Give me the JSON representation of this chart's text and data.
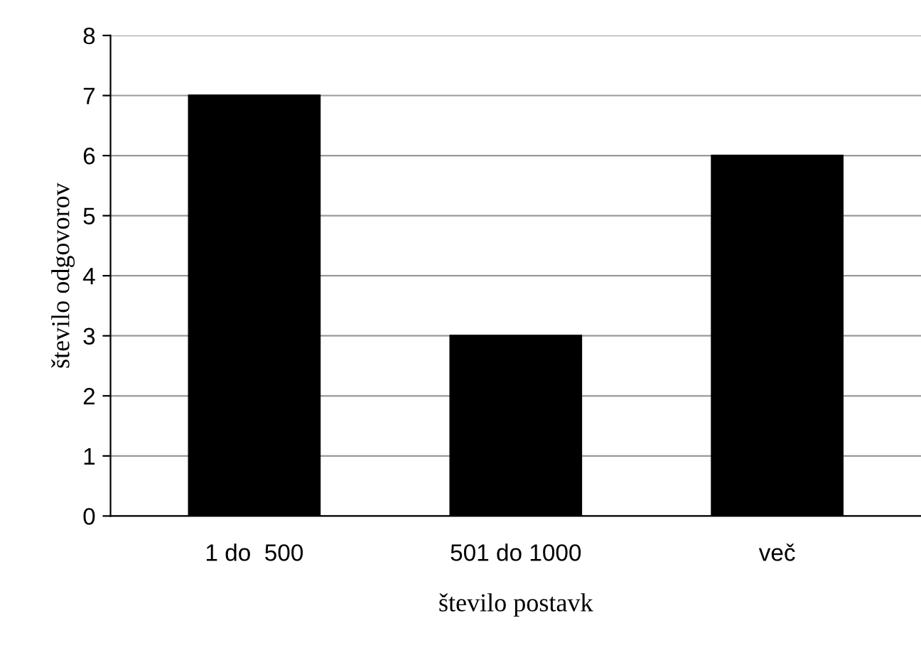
{
  "chart_data": {
    "type": "bar",
    "xlabel": "število postavk",
    "ylabel": "število odgovorov",
    "categories": [
      "1 do  500",
      "501 do 1000",
      "več"
    ],
    "values": [
      7,
      3,
      6
    ],
    "color": "#000000",
    "ylim": [
      0,
      8
    ],
    "yticks": [
      0,
      1,
      2,
      3,
      4,
      5,
      6,
      7,
      8
    ],
    "grid": "y"
  }
}
